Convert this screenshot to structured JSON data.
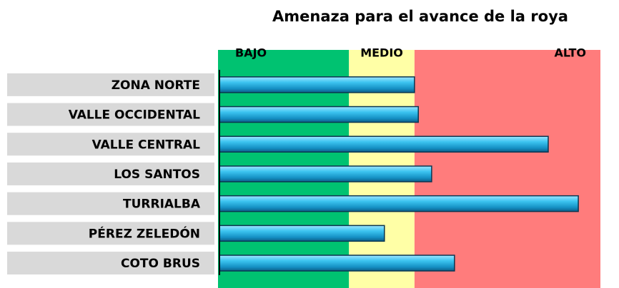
{
  "chart_data": {
    "type": "bar",
    "orientation": "horizontal",
    "title": "Amenaza para el avance de la roya",
    "categories": [
      "ZONA NORTE",
      "VALLE OCCIDENTAL",
      "VALLE CENTRAL",
      "LOS SANTOS",
      "TURRIALBA",
      "PÉREZ ZELEDÓN",
      "COTO BRUS"
    ],
    "values": [
      51.2,
      52.2,
      86.3,
      55.7,
      94.2,
      43.3,
      61.7
    ],
    "color": "#29b6e8",
    "ylim": [
      0,
      100
    ],
    "zones": [
      {
        "label": "BAJO",
        "from": 0,
        "to": 34,
        "color": "#00c271"
      },
      {
        "label": "MEDIO",
        "from": 34,
        "to": 51.2,
        "color": "#ffffa6"
      },
      {
        "label": "ALTO",
        "from": 51.2,
        "to": 100,
        "color": "#ff7c7c"
      }
    ]
  }
}
